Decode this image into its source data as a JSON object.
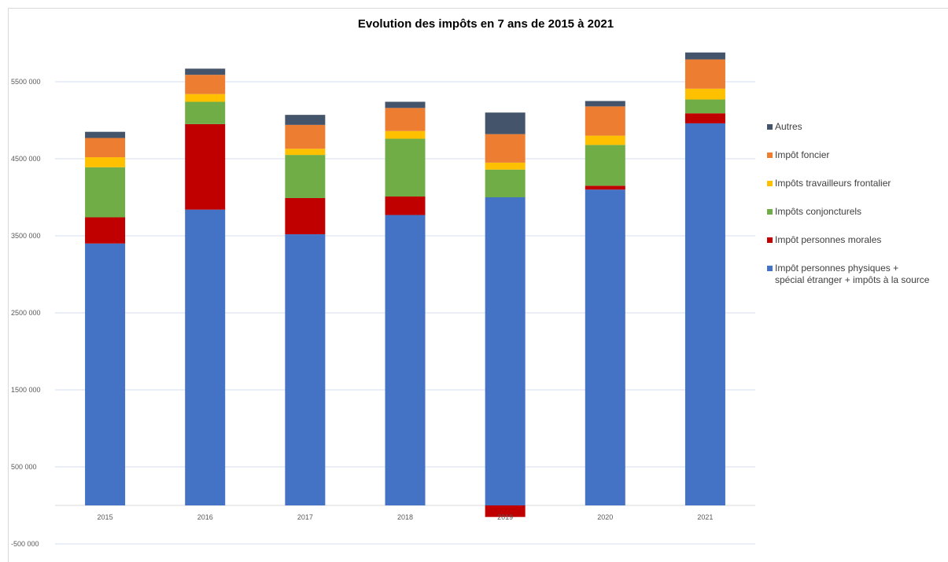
{
  "chart_data": {
    "type": "stacked-bar",
    "title": "Evolution des impôts en 7 ans de 2015 à 2021",
    "categories": [
      "2015",
      "2016",
      "2017",
      "2018",
      "2019",
      "2020",
      "2021"
    ],
    "ylim": [
      -500000,
      6000000
    ],
    "yticks": [
      -500000,
      500000,
      1500000,
      2500000,
      3500000,
      4500000,
      5500000
    ],
    "ytick_labels": [
      "-500 000",
      "500 000",
      "1500 000",
      "2500 000",
      "3500 000",
      "4500 000",
      "5500 000"
    ],
    "grid": true,
    "legend_position": "right",
    "series": [
      {
        "name": "Impôt personnes physiques +\nspécial étranger + impôts à la source",
        "color": "#4472C4",
        "values": [
          3400000,
          3840000,
          3520000,
          3770000,
          4000000,
          4100000,
          4960000
        ]
      },
      {
        "name": "Impôt personnes morales",
        "color": "#C00000",
        "values": [
          340000,
          1110000,
          470000,
          240000,
          -150000,
          50000,
          130000
        ]
      },
      {
        "name": "Impôts conjoncturels",
        "color": "#70AD47",
        "values": [
          650000,
          290000,
          560000,
          750000,
          360000,
          530000,
          180000
        ]
      },
      {
        "name": "Impôts travailleurs frontalier",
        "color": "#FFC000",
        "values": [
          130000,
          100000,
          80000,
          100000,
          90000,
          120000,
          140000
        ]
      },
      {
        "name": "Impôt foncier",
        "color": "#ED7D31",
        "values": [
          250000,
          250000,
          310000,
          300000,
          370000,
          380000,
          380000
        ]
      },
      {
        "name": "Autres",
        "color": "#44546A",
        "values": [
          80000,
          80000,
          130000,
          80000,
          280000,
          70000,
          90000
        ]
      }
    ]
  }
}
